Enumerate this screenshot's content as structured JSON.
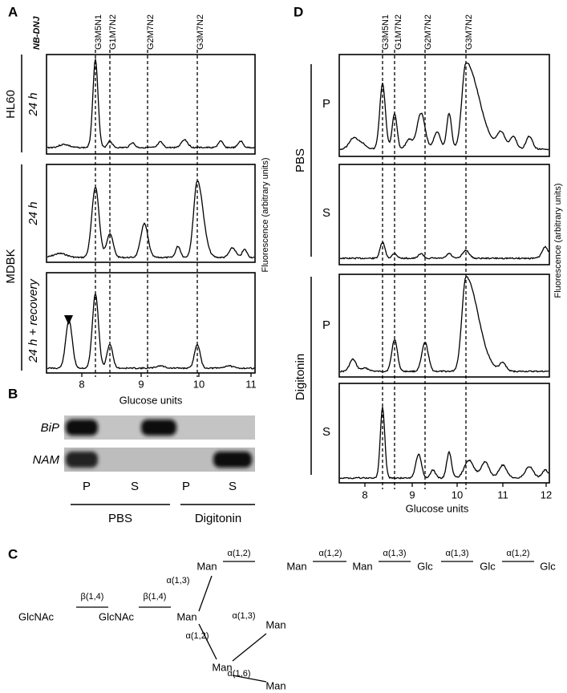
{
  "panel_a": {
    "label": "A",
    "treatment": "NB-DNJ",
    "headers": [
      "G3M5N1",
      "G1M7N2",
      "G2M7N2",
      "G3M7N2"
    ],
    "cell_lines": [
      "HL60",
      "MDBK"
    ],
    "conditions": [
      "24 h",
      "24 h",
      "24 h + recovery"
    ],
    "x_ticks": [
      "8",
      "9",
      "10",
      "11"
    ],
    "x_label": "Glucose units",
    "y_label": "Fluorescence (arbitrary units)"
  },
  "panel_b": {
    "label": "B",
    "rows": [
      "BiP",
      "NAM"
    ],
    "lanes": [
      "P",
      "S",
      "P",
      "S"
    ],
    "groups": [
      "PBS",
      "Digitonin"
    ]
  },
  "panel_c": {
    "label": "C",
    "nodes": [
      "GlcNAc",
      "GlcNAc",
      "Man",
      "Man",
      "Man",
      "Man",
      "Glc",
      "Glc",
      "Glc",
      "Man",
      "Man",
      "Man"
    ],
    "linkages": [
      "β(1,4)",
      "β(1,4)",
      "α(1,3)",
      "α(1,2)",
      "α(1,2)",
      "α(1,3)",
      "α(1,3)",
      "α(1,2)",
      "α(1,2)",
      "α(1,3)",
      "α(1,6)"
    ]
  },
  "panel_d": {
    "label": "D",
    "headers": [
      "G3M5N1",
      "G1M7N2",
      "G2M7N2",
      "G3M7N2"
    ],
    "groups": [
      "PBS",
      "Digitonin"
    ],
    "fractions": [
      "P",
      "S",
      "P",
      "S"
    ],
    "x_ticks": [
      "8",
      "9",
      "10",
      "11",
      "12"
    ],
    "x_label": "Glucose units",
    "y_label": "Fluorescence (arbitrary units)"
  }
}
